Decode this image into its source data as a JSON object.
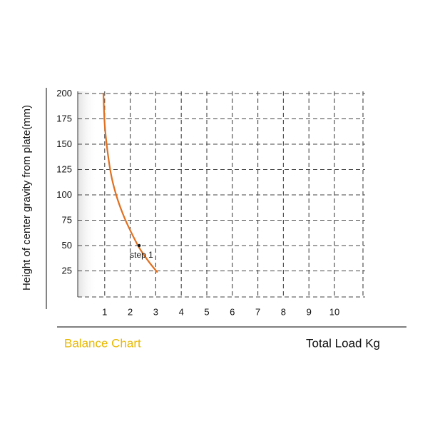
{
  "chart_data": {
    "type": "line",
    "ylabel": "Height of center gravity from plate(mm)",
    "xlabel": "Total Load Kg",
    "caption": "Balance Chart",
    "x_ticks": [
      "1",
      "2",
      "3",
      "4",
      "5",
      "6",
      "7",
      "8",
      "9",
      "10"
    ],
    "y_ticks": [
      "25",
      "50",
      "75",
      "100",
      "125",
      "150",
      "175",
      "200"
    ],
    "xlim": [
      0,
      10.5
    ],
    "ylim": [
      0,
      200
    ],
    "grid": true,
    "series": [
      {
        "x": [
          0.95,
          1.0,
          1.1,
          1.25,
          1.45,
          1.7,
          2.0,
          2.35,
          2.7,
          3.05
        ],
        "y": [
          200,
          170,
          145,
          120,
          100,
          82,
          65,
          48,
          35,
          24
        ]
      }
    ],
    "annotations": [
      {
        "text": "step 1",
        "x": 2.35,
        "y": 50
      }
    ],
    "colors": {
      "line": "#e07020",
      "grid": "#444444",
      "shade": "#eeeeee",
      "caption": "#e8b800",
      "text": "#111111",
      "marker": "#111111"
    }
  }
}
